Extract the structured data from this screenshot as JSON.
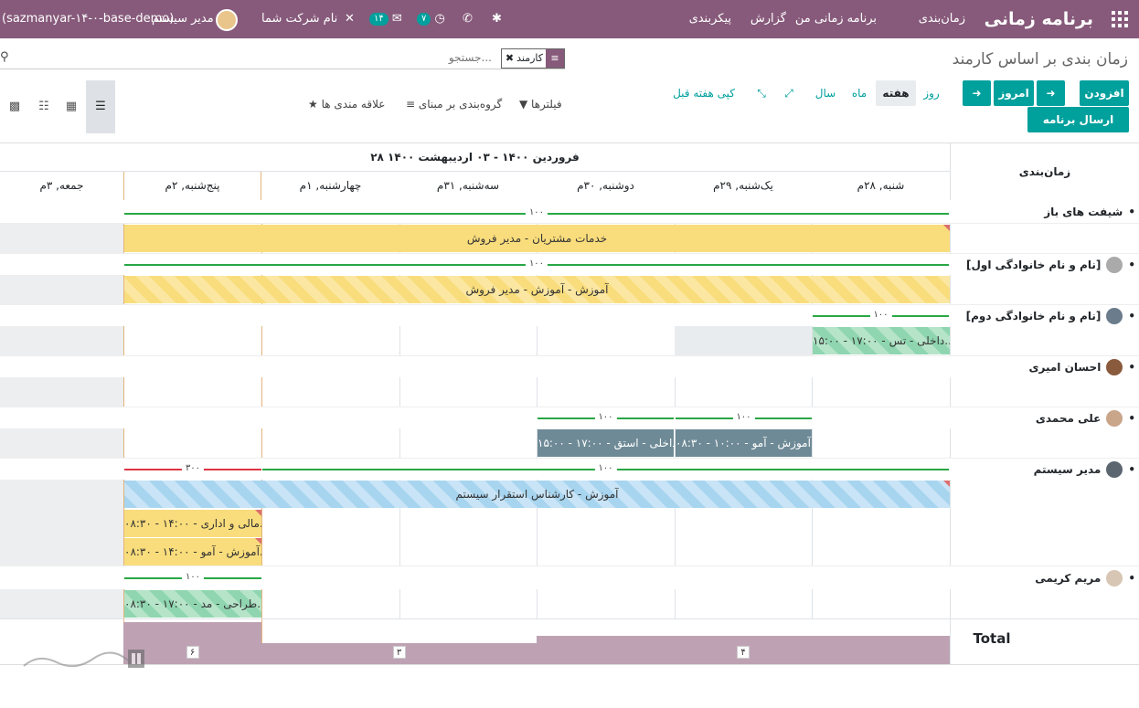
{
  "topbar": {
    "brand": "برنامه زمانی",
    "menu": [
      "زمان‌بندی",
      "برنامه زمانی من",
      "گزارش",
      "پیکربندی"
    ],
    "company": "نام شرکت شما",
    "activity_badge": "۷",
    "messages_badge": "۱۴",
    "user": "مدیر سیستم",
    "db": "(sazmanyar-۱۴-۰-base-demo)"
  },
  "control": {
    "title": "زمان بندی بر اساس کارمند",
    "facet": "کارمند",
    "search_placeholder": "جستجو...",
    "add": "افزودن",
    "send": "ارسال برنامه زمانی",
    "today": "امروز",
    "scales": {
      "day": "روز",
      "week": "هفته",
      "month": "ماه",
      "year": "سال"
    },
    "copy_prev": "کپی هفته قبل",
    "filters": "فیلترها",
    "group_by": "گروه‌بندی بر مبنای",
    "favorites": "علاقه مندی ها"
  },
  "gantt": {
    "header_label": "زمان‌بندی",
    "range": "۲۸ فروردین ۱۴۰۰ - ۰۳ اردیبهشت ۱۴۰۰",
    "days": [
      "شنبه, ۲۸م",
      "یک‌شنبه, ۲۹م",
      "دوشنبه, ۳۰م",
      "سه‌شنبه, ۳۱م",
      "چهارشنبه, ۱م",
      "پنج‌شنبه, ۲م",
      "جمعه, ۳م"
    ],
    "rows": [
      {
        "label": "شیفت های باز"
      },
      {
        "label": "[نام و نام خانوادگی اول]"
      },
      {
        "label": "[نام و نام خانوادگی دوم]"
      },
      {
        "label": "احسان امیری"
      },
      {
        "label": "علی محمدی"
      },
      {
        "label": "مدیر سیستم"
      },
      {
        "label": "مریم کریمی"
      }
    ],
    "allocations": {
      "a1": "۱۰۰",
      "a2": "۱۰۰",
      "a3": "۱۰۰",
      "a4": "۱۰۰",
      "a5": "۱۰۰",
      "a6": "۱۰۰",
      "a7": "۳۰۰",
      "a8": "۱۰۰"
    },
    "pills": {
      "open": "خدمات مشتریان - مدیر فروش",
      "first": "آموزش - آموزش - مدیر فروش",
      "second": "۱۵:۰۰ - ۱۷:۰۰ - داخلی - تس...",
      "ali1": "۰۸:۳۰ - ۱۰:۰۰ - آموزش - آمو...",
      "ali2": "۱۵:۰۰ - ۱۷:۰۰ - داخلی - استق...",
      "admin_long": "آموزش - کارشناس استقرار سیستم",
      "admin1": "۰۸:۳۰ - ۱۴:۰۰ - مالی و اداری...",
      "admin2": "۰۸:۳۰ - ۱۴:۰۰ - آموزش - آمو...",
      "maryam": "۰۸:۳۰ - ۱۷:۰۰ - طراحی - مد..."
    },
    "total_label": "Total",
    "totals": [
      {
        "value": 4,
        "text": "۴"
      },
      {
        "value": 3,
        "text": "۳"
      },
      {
        "value": 6,
        "text": "۶"
      }
    ]
  }
}
